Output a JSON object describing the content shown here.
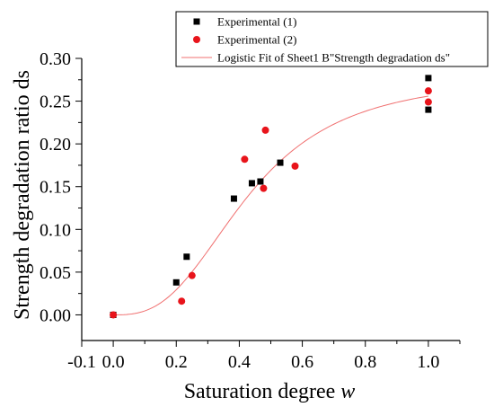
{
  "chart_data": {
    "type": "scatter",
    "xlabel_text": "Saturation degree ",
    "xlabel_var": "w",
    "ylabel": "Strength degradation ratio ds",
    "xlim": [
      -0.1,
      1.1
    ],
    "ylim": [
      -0.03,
      0.3
    ],
    "x_ticks": [
      "-0.1",
      "0.0",
      "0.2",
      "0.4",
      "0.6",
      "0.8",
      "1.0"
    ],
    "y_ticks": [
      "0.00",
      "0.05",
      "0.10",
      "0.15",
      "0.20",
      "0.25",
      "0.30"
    ],
    "grid": false,
    "legend_position": "top-right",
    "series": [
      {
        "name": "Experimental (1)",
        "marker": "square",
        "color": "#000000",
        "points": [
          [
            0.0,
            0.0
          ],
          [
            0.2,
            0.038
          ],
          [
            0.233,
            0.068
          ],
          [
            0.383,
            0.136
          ],
          [
            0.44,
            0.154
          ],
          [
            0.467,
            0.156
          ],
          [
            0.53,
            0.178
          ],
          [
            1.0,
            0.277
          ],
          [
            1.0,
            0.24
          ]
        ]
      },
      {
        "name": "Experimental (2)",
        "marker": "circle",
        "color": "#e8141b",
        "points": [
          [
            0.0,
            0.0
          ],
          [
            0.217,
            0.016
          ],
          [
            0.25,
            0.046
          ],
          [
            0.417,
            0.182
          ],
          [
            0.477,
            0.148
          ],
          [
            0.483,
            0.216
          ],
          [
            0.577,
            0.174
          ],
          [
            1.0,
            0.262
          ],
          [
            1.0,
            0.249
          ]
        ]
      },
      {
        "name": "Logistic Fit of Sheet1 B\"Strength degradation ds\"",
        "type": "line",
        "color": "#f07070",
        "logistic": {
          "A1": 0,
          "A2": 0.28,
          "x0": 0.43,
          "p": 2.8
        },
        "x_range": [
          0.0,
          1.0
        ]
      }
    ]
  }
}
